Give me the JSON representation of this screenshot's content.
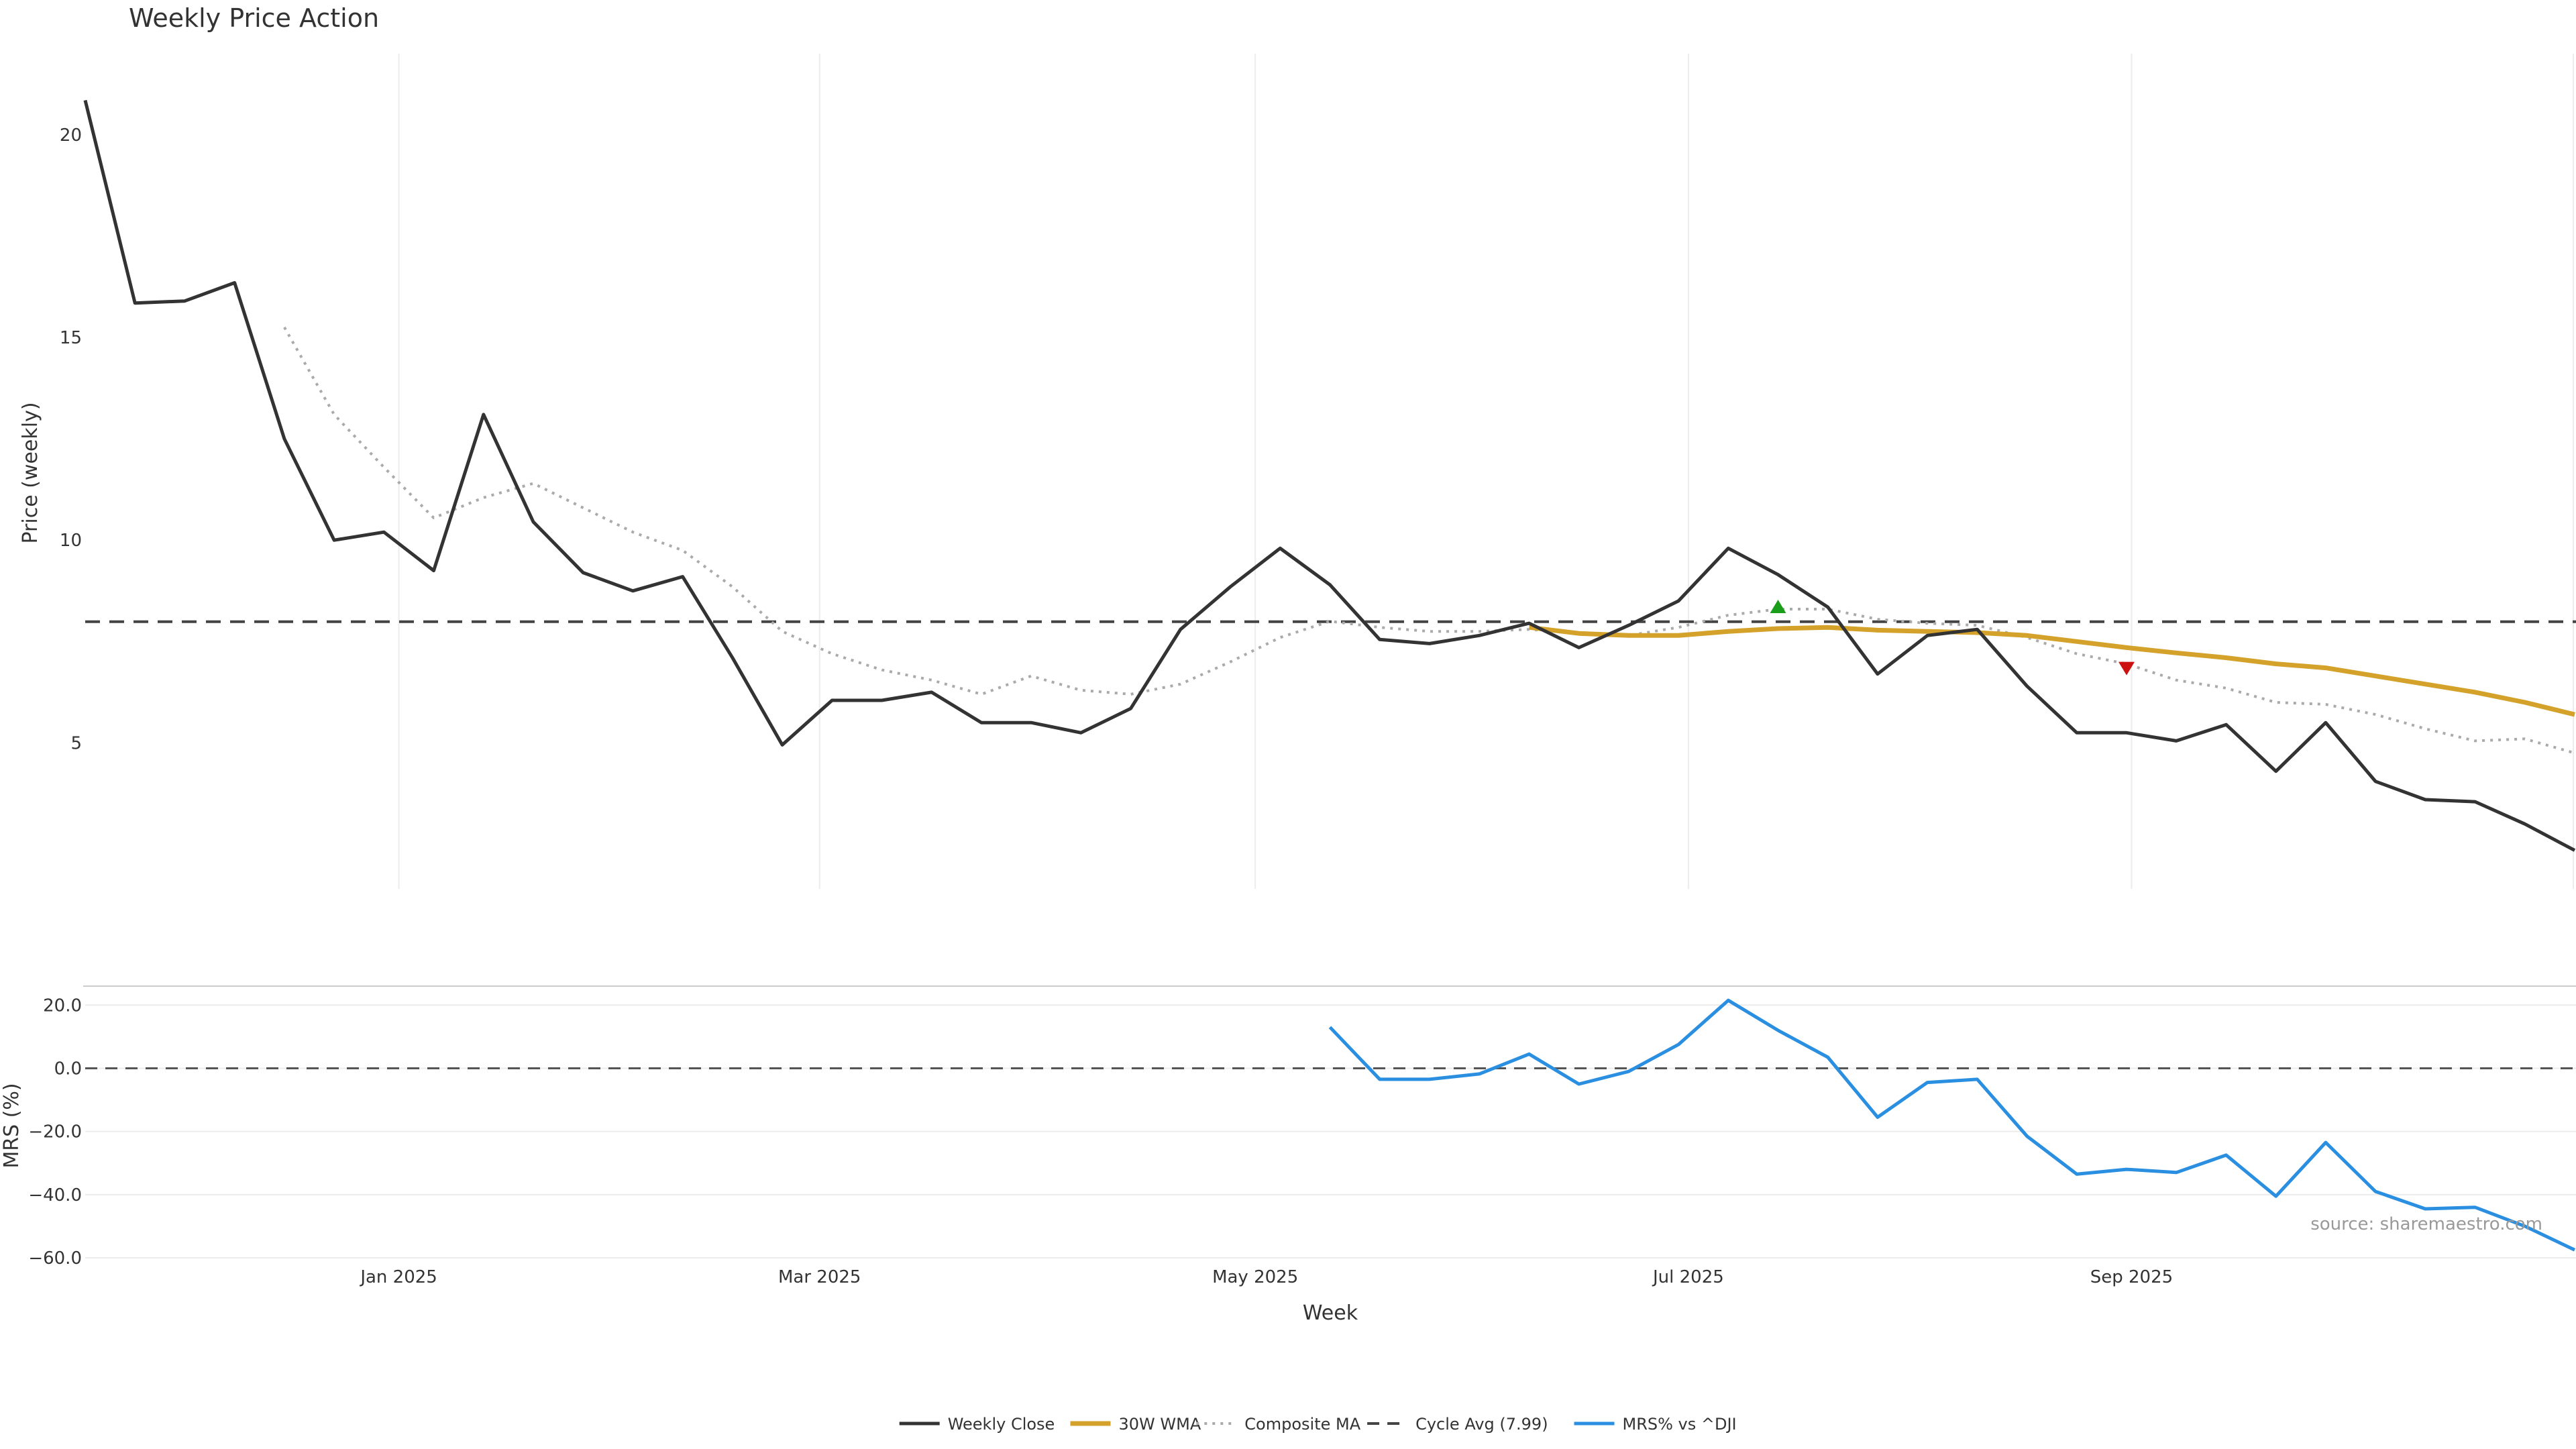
{
  "colors": {
    "weekly_close": "#333333",
    "wma": "#d4a22a",
    "composite_ma": "#aaaaaa",
    "cycle_avg": "#444444",
    "mrs": "#2a8fe0",
    "buy_marker": "#1a9e1a",
    "sell_marker": "#cc1111",
    "grid": "#ececec"
  },
  "chart_data": [
    {
      "type": "line",
      "title": "Weekly Price Action",
      "xlabel": "",
      "ylabel": "Price (weekly)",
      "ylim": [
        1.4,
        22.0
      ],
      "yticks": [
        5,
        10,
        15,
        20
      ],
      "x_months": [
        {
          "label": "Jan 2025",
          "week": 6.3
        },
        {
          "label": "Mar 2025",
          "week": 14.75
        },
        {
          "label": "May 2025",
          "week": 23.5
        },
        {
          "label": "Jul 2025",
          "week": 32.2
        },
        {
          "label": "Sep 2025",
          "week": 41.1
        }
      ],
      "series": [
        {
          "name": "Weekly Close",
          "x": [
            0,
            1,
            2,
            3,
            4,
            5,
            6,
            7,
            8,
            9,
            10,
            11,
            12,
            13,
            14,
            15,
            16,
            17,
            18,
            19,
            20,
            21,
            22,
            23,
            24,
            25,
            26,
            27,
            28,
            29,
            30,
            31,
            32,
            33,
            34,
            35,
            36,
            37,
            38,
            39,
            40,
            41,
            42,
            43,
            44,
            45,
            46,
            47,
            48,
            49,
            50
          ],
          "values": [
            20.85,
            15.85,
            15.9,
            16.35,
            12.5,
            10.0,
            10.2,
            9.25,
            13.1,
            10.45,
            9.2,
            8.75,
            9.1,
            7.1,
            4.95,
            6.05,
            6.05,
            6.25,
            5.5,
            5.5,
            5.25,
            5.85,
            7.8,
            8.85,
            9.8,
            8.9,
            7.55,
            7.45,
            7.65,
            7.95,
            7.35,
            7.9,
            8.5,
            9.8,
            9.15,
            8.35,
            6.7,
            7.65,
            7.8,
            6.4,
            5.25,
            5.25,
            5.05,
            5.45,
            4.3,
            5.5,
            4.05,
            3.6,
            3.55,
            3.0,
            2.35
          ]
        },
        {
          "name": "30W WMA",
          "x": [
            29,
            30,
            31,
            32,
            33,
            34,
            35,
            36,
            37,
            38,
            39,
            40,
            41,
            42,
            43,
            44,
            45,
            46,
            47,
            48,
            49,
            50
          ],
          "values": [
            7.85,
            7.7,
            7.65,
            7.65,
            7.75,
            7.82,
            7.85,
            7.78,
            7.75,
            7.72,
            7.65,
            7.5,
            7.35,
            7.22,
            7.1,
            6.95,
            6.85,
            6.65,
            6.45,
            6.25,
            6.0,
            5.7
          ]
        },
        {
          "name": "Composite MA",
          "x": [
            4,
            5,
            6,
            7,
            8,
            9,
            10,
            11,
            12,
            13,
            14,
            15,
            16,
            17,
            18,
            19,
            20,
            21,
            22,
            23,
            24,
            25,
            26,
            27,
            28,
            29,
            30,
            31,
            32,
            33,
            34,
            35,
            36,
            37,
            38,
            39,
            40,
            41,
            42,
            43,
            44,
            45,
            46,
            47,
            48,
            49,
            50
          ],
          "values": [
            15.25,
            13.1,
            11.8,
            10.55,
            11.05,
            11.4,
            10.8,
            10.2,
            9.75,
            8.85,
            7.75,
            7.2,
            6.8,
            6.55,
            6.2,
            6.65,
            6.3,
            6.2,
            6.45,
            7.0,
            7.6,
            8.0,
            7.85,
            7.75,
            7.75,
            7.8,
            7.7,
            7.65,
            7.85,
            8.15,
            8.3,
            8.3,
            8.05,
            7.95,
            7.9,
            7.6,
            7.2,
            6.95,
            6.55,
            6.35,
            6.0,
            5.95,
            5.7,
            5.35,
            5.05,
            5.1,
            4.75
          ]
        },
        {
          "name": "Cycle Avg (7.99)",
          "constant": 7.99
        }
      ],
      "annotations": [
        {
          "type": "buy-signal",
          "week": 34.0,
          "value": 8.35
        },
        {
          "type": "sell-signal",
          "week": 41.0,
          "value": 6.85
        }
      ]
    },
    {
      "type": "line",
      "title": "",
      "xlabel": "Week",
      "ylabel": "MRS (%)",
      "ylim": [
        -60.0,
        26.0
      ],
      "yticks": [
        20.0,
        0.0,
        -20.0,
        -40.0,
        -60.0
      ],
      "ytick_labels": [
        "20.0",
        "0.0",
        "−20.0",
        "−40.0",
        "−60.0"
      ],
      "x_months": [
        {
          "label": "Jan 2025",
          "week": 6.3
        },
        {
          "label": "Mar 2025",
          "week": 14.75
        },
        {
          "label": "May 2025",
          "week": 23.5
        },
        {
          "label": "Jul 2025",
          "week": 32.2
        },
        {
          "label": "Sep 2025",
          "week": 41.1
        }
      ],
      "series": [
        {
          "name": "MRS% vs ^DJI",
          "x": [
            25,
            26,
            27,
            28,
            29,
            30,
            31,
            32,
            33,
            34,
            35,
            36,
            37,
            38,
            39,
            40,
            41,
            42,
            43,
            44,
            45,
            46,
            47,
            48,
            49,
            50
          ],
          "values": [
            13.0,
            -3.5,
            -3.5,
            -1.8,
            4.5,
            -5.0,
            -1.0,
            7.5,
            21.5,
            12.0,
            3.5,
            -15.5,
            -4.5,
            -3.5,
            -21.5,
            -33.5,
            -32.0,
            -33.0,
            -27.5,
            -40.5,
            -23.5,
            -39.0,
            -44.5,
            -44.0,
            -50.0,
            -57.5
          ]
        },
        {
          "name": "zero-line",
          "constant": 0.0
        }
      ]
    }
  ],
  "source": "source: sharemaestro.com",
  "legend": {
    "placement": "bottom-center",
    "items": [
      {
        "label": "Weekly Close",
        "style": "solid",
        "color_key": "weekly_close"
      },
      {
        "label": "30W WMA",
        "style": "solid",
        "color_key": "wma"
      },
      {
        "label": "Composite MA",
        "style": "dotted",
        "color_key": "composite_ma"
      },
      {
        "label": "Cycle Avg (7.99)",
        "style": "dashed",
        "color_key": "cycle_avg"
      },
      {
        "label": "MRS% vs ^DJI",
        "style": "solid",
        "color_key": "mrs"
      }
    ]
  }
}
